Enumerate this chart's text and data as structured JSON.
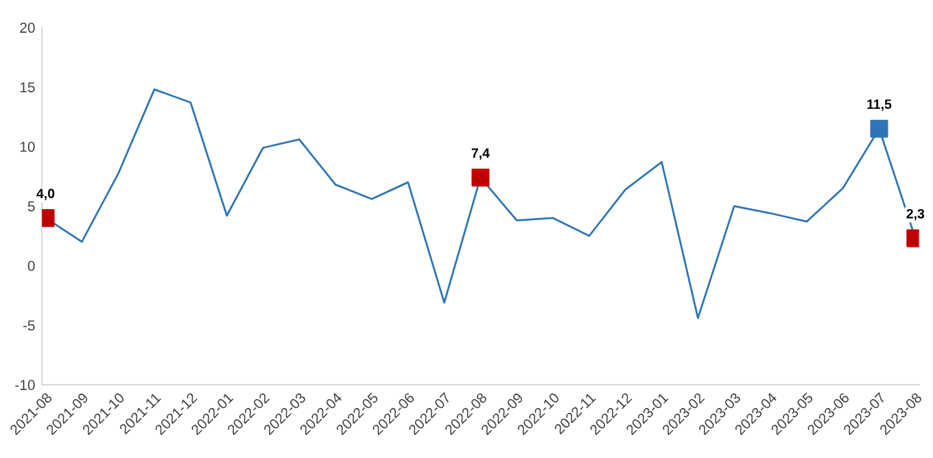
{
  "chart_data": {
    "type": "line",
    "categories": [
      "2021-08",
      "2021-09",
      "2021-10",
      "2021-11",
      "2021-12",
      "2022-01",
      "2022-02",
      "2022-03",
      "2022-04",
      "2022-05",
      "2022-06",
      "2022-07",
      "2022-08",
      "2022-09",
      "2022-10",
      "2022-11",
      "2022-12",
      "2023-01",
      "2023-02",
      "2023-03",
      "2023-04",
      "2023-05",
      "2023-06",
      "2023-07",
      "2023-08"
    ],
    "series": [
      {
        "color": "#2e75b6",
        "marker": "none",
        "values": [
          4.0,
          2.0,
          7.7,
          14.8,
          13.7,
          4.2,
          9.9,
          10.6,
          6.8,
          5.6,
          7.0,
          -3.1,
          7.4,
          3.8,
          4.0,
          2.5,
          6.4,
          8.7,
          -4.4,
          5.0,
          4.4,
          3.7,
          6.5,
          11.5,
          2.3
        ]
      },
      {
        "type": "scatter",
        "marker": "square",
        "values": [
          4.0,
          null,
          null,
          null,
          null,
          null,
          null,
          null,
          null,
          null,
          null,
          null,
          7.4,
          null,
          null,
          null,
          null,
          null,
          null,
          null,
          null,
          null,
          null,
          11.5,
          2.3
        ],
        "colors": [
          "#c00000",
          null,
          null,
          null,
          null,
          null,
          null,
          null,
          null,
          null,
          null,
          null,
          "#c00000",
          null,
          null,
          null,
          null,
          null,
          null,
          null,
          null,
          null,
          null,
          "#2e75b6",
          "#c00000"
        ],
        "value_labels": [
          "4,0",
          null,
          null,
          null,
          null,
          null,
          null,
          null,
          null,
          null,
          null,
          null,
          "7,4",
          null,
          null,
          null,
          null,
          null,
          null,
          null,
          null,
          null,
          null,
          "11,5",
          "2,3"
        ]
      }
    ],
    "ylim": [
      -10,
      20
    ],
    "yticks": [
      -10,
      -5,
      0,
      5,
      10,
      15,
      20
    ],
    "grid": false,
    "legend": false,
    "line_style": "solid"
  }
}
